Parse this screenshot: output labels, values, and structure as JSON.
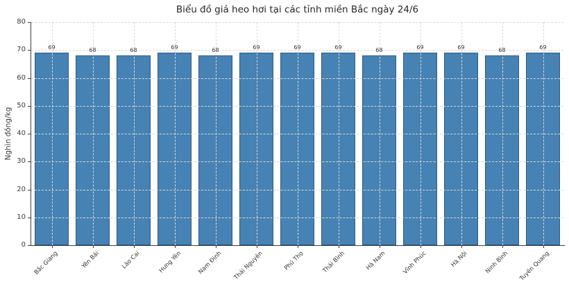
{
  "chart_data": {
    "type": "bar",
    "title": "Biểu đồ giá heo hơi tại các tỉnh miền Bắc ngày 24/6",
    "xlabel": "",
    "ylabel": "Nghìn đồng/kg",
    "categories": [
      "Bắc Giang",
      "Yên Bái",
      "Lào Cai",
      "Hưng Yên",
      "Nam Định",
      "Thái Nguyên",
      "Phú Thọ",
      "Thái Bình",
      "Hà Nam",
      "Vĩnh Phúc",
      "Hà Nội",
      "Ninh Bình",
      "Tuyên Quang"
    ],
    "values": [
      69,
      68,
      68,
      69,
      68,
      69,
      69,
      69,
      68,
      69,
      69,
      68,
      69
    ],
    "ylim": [
      0,
      80
    ],
    "yticks": [
      0,
      10,
      20,
      30,
      40,
      50,
      60,
      70,
      80
    ],
    "grid": true,
    "grid_style": "dashed",
    "legend_position": "none",
    "bar_value_labels_shown": true,
    "colors": {
      "bar_fill": "#4682B4",
      "bar_edge": "#2d5f8d",
      "grid": "#d9d9d9",
      "axis": "#3c3c3c",
      "title_text": "#262626",
      "tick_text": "#333333",
      "background": "#ffffff"
    }
  }
}
